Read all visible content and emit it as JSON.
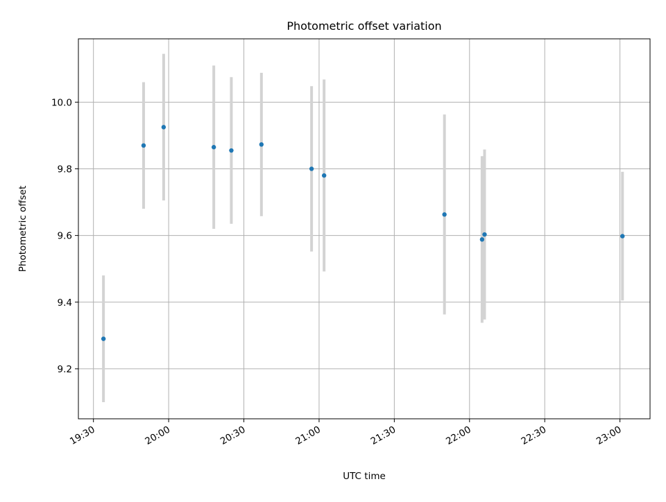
{
  "chart_data": {
    "type": "scatter",
    "title": "Photometric offset variation",
    "xlabel": "UTC time",
    "ylabel": "Photometric offset",
    "x_scale": "time",
    "xlim": [
      "19:24",
      "23:12"
    ],
    "ylim": [
      9.05,
      10.19
    ],
    "grid": true,
    "x_ticks": [
      "19:30",
      "20:00",
      "20:30",
      "21:00",
      "21:30",
      "22:00",
      "22:30",
      "23:00"
    ],
    "y_ticks": [
      "9.2",
      "9.4",
      "9.6",
      "9.8",
      "10.0"
    ],
    "series": [
      {
        "marker_color": "#1f77b4",
        "errorbar_color": "#d3d3d3",
        "points": [
          {
            "x": "19:34",
            "y": 9.29,
            "yerr": 0.19
          },
          {
            "x": "19:50",
            "y": 9.87,
            "yerr": 0.19
          },
          {
            "x": "19:58",
            "y": 9.925,
            "yerr": 0.22
          },
          {
            "x": "20:18",
            "y": 9.865,
            "yerr": 0.245
          },
          {
            "x": "20:25",
            "y": 9.855,
            "yerr": 0.22
          },
          {
            "x": "20:37",
            "y": 9.873,
            "yerr": 0.215
          },
          {
            "x": "20:57",
            "y": 9.8,
            "yerr": 0.248
          },
          {
            "x": "21:02",
            "y": 9.78,
            "yerr": 0.288
          },
          {
            "x": "21:50",
            "y": 9.663,
            "yerr": 0.3
          },
          {
            "x": "22:05",
            "y": 9.588,
            "yerr": 0.25
          },
          {
            "x": "22:06",
            "y": 9.603,
            "yerr": 0.255
          },
          {
            "x": "23:01",
            "y": 9.598,
            "yerr": 0.193
          }
        ]
      }
    ]
  }
}
